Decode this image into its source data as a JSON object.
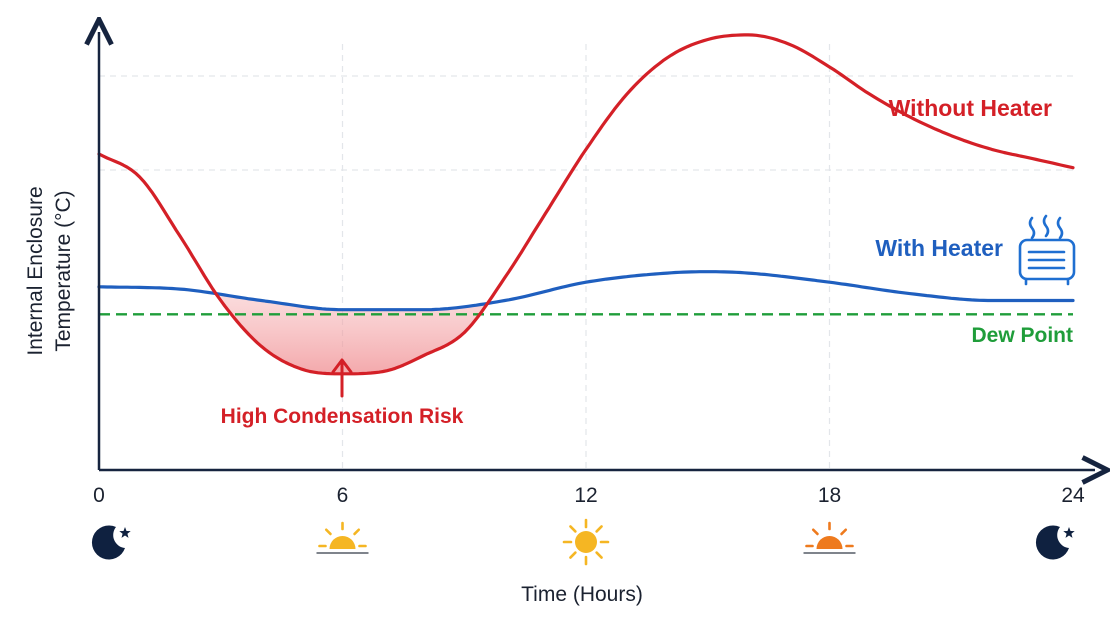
{
  "chart_data": {
    "type": "line",
    "xlabel": "Time (Hours)",
    "ylabel_line1": "Internal Enclosure",
    "ylabel_line2": "Temperature (°C)",
    "x_ticks": [
      0,
      6,
      12,
      18,
      24
    ],
    "xlim": [
      0,
      24
    ],
    "ylim": [
      0,
      100
    ],
    "grid": true,
    "series": [
      {
        "name": "Without Heater",
        "color": "#d42027",
        "x": [
          0,
          1,
          2,
          3,
          4,
          5,
          6,
          7,
          8,
          9,
          10,
          11,
          12,
          13,
          14,
          15,
          16,
          17,
          18,
          19,
          20,
          21,
          22,
          23,
          24
        ],
        "y": [
          69,
          64,
          51,
          37,
          27,
          22,
          21,
          21.5,
          25,
          30,
          42,
          56,
          70,
          82,
          90,
          94,
          95,
          93,
          88,
          82,
          77,
          73,
          70,
          68,
          66
        ]
      },
      {
        "name": "With Heater",
        "color": "#1f5fbf",
        "x": [
          0,
          2,
          4,
          6,
          8,
          10,
          12,
          14,
          15,
          16,
          18,
          20,
          22,
          24
        ],
        "y": [
          40,
          39.5,
          37,
          35,
          35,
          37,
          41,
          43,
          43.3,
          43,
          41,
          38.5,
          37,
          37
        ]
      },
      {
        "name": "Dew Point",
        "color": "#1f9d3a",
        "dashed": true,
        "x": [
          0,
          24
        ],
        "y": [
          34,
          34
        ]
      }
    ],
    "annotations": {
      "condensation_label": "High Condensation Risk",
      "condensation_x": 6,
      "condensation_color": "#d42027"
    },
    "time_icons": [
      "moon-icon",
      "sunrise-icon",
      "sun-icon",
      "sunset-icon",
      "moon-icon"
    ],
    "icon_colors": {
      "moon": "#0f2140",
      "sun": "#f5b623",
      "sunset": "#ee7a1e",
      "heater": "#1f6fd1"
    }
  }
}
